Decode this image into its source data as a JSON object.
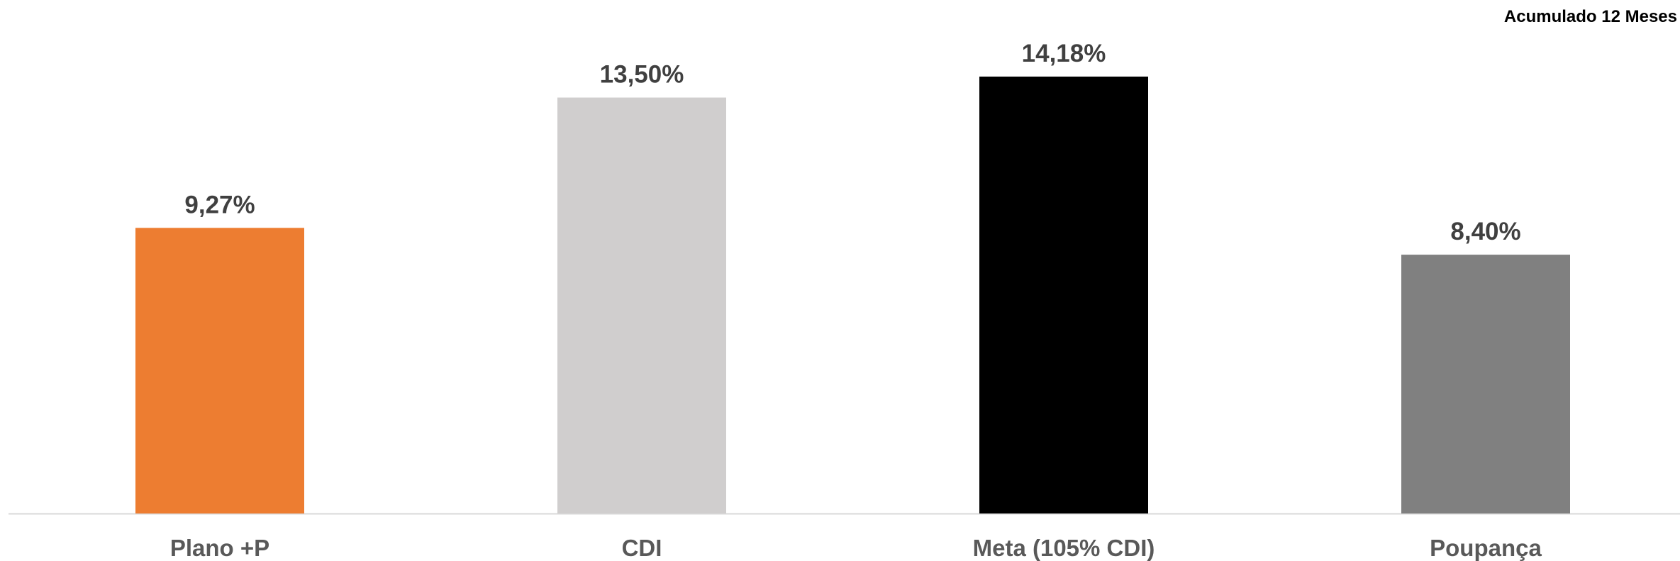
{
  "caption": "Acumulado 12 Meses",
  "chart_data": {
    "type": "bar",
    "title": "",
    "xlabel": "",
    "ylabel": "",
    "categories": [
      "Plano +P",
      "CDI",
      "Meta (105% CDI)",
      "Poupança"
    ],
    "values": [
      9.27,
      13.5,
      14.18,
      8.4
    ],
    "value_labels": [
      "9,27%",
      "13,50%",
      "14,18%",
      "8,40%"
    ],
    "colors": [
      "#ED7D31",
      "#D0CECE",
      "#000000",
      "#808080"
    ],
    "axis_color": "#D9D9D9",
    "ylim": [
      0,
      14.18
    ],
    "grid": false,
    "legend": "none"
  }
}
